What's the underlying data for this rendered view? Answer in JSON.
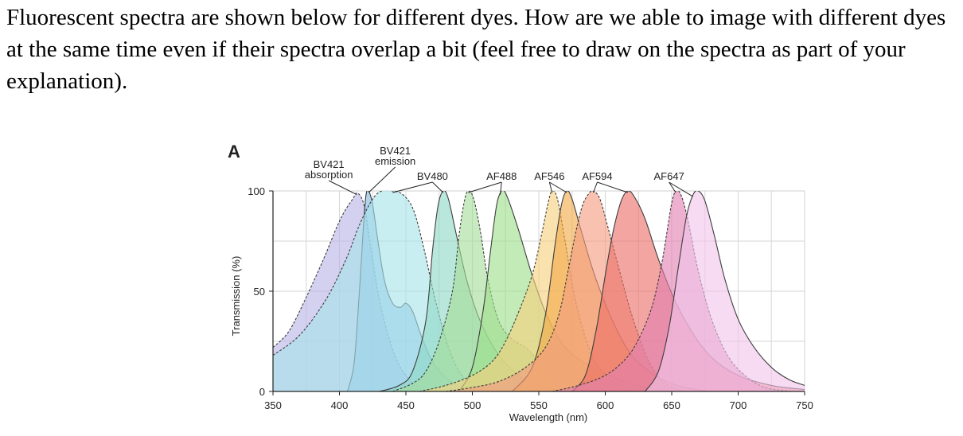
{
  "question": {
    "text": "Fluorescent spectra are shown below for different dyes. How are we able to image with different dyes at the same time even if their spectra overlap a bit (feel free to draw on the spectra as part of your explanation)."
  },
  "chart_data": {
    "type": "area",
    "panel_label": "A",
    "title": "",
    "xlabel": "Wavelength (nm)",
    "ylabel": "Transmission (%)",
    "xlim": [
      350,
      750
    ],
    "ylim": [
      0,
      100
    ],
    "xticks": [
      350,
      400,
      450,
      500,
      550,
      600,
      650,
      700,
      750
    ],
    "yticks": [
      0,
      50,
      100
    ],
    "grid": true,
    "legend": "inline labels above peaks",
    "series": [
      {
        "key": "bv421_abs",
        "label": "BV421 absorption",
        "kind": "absorption",
        "color": "#b9b3e6",
        "points": [
          [
            350,
            22
          ],
          [
            362,
            30
          ],
          [
            375,
            47
          ],
          [
            388,
            66
          ],
          [
            398,
            82
          ],
          [
            404,
            90
          ],
          [
            410,
            96
          ],
          [
            413,
            99
          ],
          [
            417,
            96
          ],
          [
            420,
            88
          ],
          [
            424,
            70
          ],
          [
            430,
            46
          ],
          [
            438,
            25
          ],
          [
            446,
            12
          ],
          [
            456,
            4
          ],
          [
            470,
            0
          ]
        ]
      },
      {
        "key": "bv421_em",
        "label": "BV421 emission",
        "kind": "emission",
        "color": "#7fb7e3",
        "points": [
          [
            406,
            0
          ],
          [
            411,
            14
          ],
          [
            415,
            50
          ],
          [
            418,
            82
          ],
          [
            420,
            98
          ],
          [
            422,
            100
          ],
          [
            425,
            93
          ],
          [
            429,
            75
          ],
          [
            434,
            55
          ],
          [
            440,
            44
          ],
          [
            446,
            42
          ],
          [
            450,
            44
          ],
          [
            455,
            40
          ],
          [
            462,
            27
          ],
          [
            470,
            15
          ],
          [
            480,
            7
          ],
          [
            492,
            2
          ],
          [
            505,
            0
          ]
        ]
      },
      {
        "key": "bv480_abs",
        "label": "",
        "kind": "absorption",
        "color": "#a8e3ea",
        "points": [
          [
            350,
            18
          ],
          [
            370,
            28
          ],
          [
            390,
            46
          ],
          [
            405,
            66
          ],
          [
            415,
            83
          ],
          [
            425,
            96
          ],
          [
            432,
            100
          ],
          [
            440,
            100
          ],
          [
            448,
            98
          ],
          [
            456,
            90
          ],
          [
            464,
            70
          ],
          [
            472,
            46
          ],
          [
            482,
            22
          ],
          [
            492,
            8
          ],
          [
            504,
            2
          ],
          [
            515,
            0
          ]
        ]
      },
      {
        "key": "bv480_em",
        "label": "BV480",
        "kind": "emission",
        "color": "#8fd9c5",
        "points": [
          [
            430,
            0
          ],
          [
            445,
            3
          ],
          [
            455,
            10
          ],
          [
            465,
            35
          ],
          [
            470,
            70
          ],
          [
            474,
            92
          ],
          [
            478,
            100
          ],
          [
            482,
            96
          ],
          [
            488,
            78
          ],
          [
            496,
            55
          ],
          [
            506,
            35
          ],
          [
            520,
            18
          ],
          [
            535,
            8
          ],
          [
            550,
            3
          ],
          [
            570,
            0
          ]
        ]
      },
      {
        "key": "af488_abs",
        "label": "",
        "kind": "absorption",
        "color": "#a4dd9a",
        "points": [
          [
            440,
            0
          ],
          [
            455,
            4
          ],
          [
            465,
            10
          ],
          [
            475,
            25
          ],
          [
            485,
            50
          ],
          [
            490,
            78
          ],
          [
            494,
            95
          ],
          [
            497,
            100
          ],
          [
            501,
            96
          ],
          [
            506,
            80
          ],
          [
            512,
            55
          ],
          [
            520,
            35
          ],
          [
            530,
            26
          ],
          [
            540,
            22
          ],
          [
            550,
            15
          ],
          [
            560,
            5
          ],
          [
            570,
            0
          ]
        ]
      },
      {
        "key": "af488_em",
        "label": "AF488",
        "kind": "emission",
        "color": "#9ddf8b",
        "points": [
          [
            490,
            0
          ],
          [
            500,
            12
          ],
          [
            508,
            40
          ],
          [
            514,
            72
          ],
          [
            518,
            92
          ],
          [
            521,
            99
          ],
          [
            524,
            100
          ],
          [
            528,
            94
          ],
          [
            535,
            80
          ],
          [
            545,
            58
          ],
          [
            556,
            38
          ],
          [
            570,
            22
          ],
          [
            590,
            12
          ],
          [
            615,
            5
          ],
          [
            640,
            1
          ],
          [
            660,
            0
          ]
        ]
      },
      {
        "key": "af546_abs",
        "label": "",
        "kind": "absorption",
        "color": "#f7d07e",
        "points": [
          [
            460,
            0
          ],
          [
            480,
            3
          ],
          [
            500,
            8
          ],
          [
            515,
            15
          ],
          [
            525,
            25
          ],
          [
            535,
            40
          ],
          [
            545,
            58
          ],
          [
            552,
            78
          ],
          [
            557,
            94
          ],
          [
            560,
            100
          ],
          [
            564,
            96
          ],
          [
            570,
            74
          ],
          [
            578,
            44
          ],
          [
            590,
            18
          ],
          [
            605,
            5
          ],
          [
            620,
            0
          ]
        ]
      },
      {
        "key": "af546_em",
        "label": "AF546",
        "kind": "emission",
        "color": "#f2aa48",
        "points": [
          [
            530,
            0
          ],
          [
            545,
            12
          ],
          [
            555,
            38
          ],
          [
            562,
            72
          ],
          [
            567,
            93
          ],
          [
            571,
            100
          ],
          [
            575,
            96
          ],
          [
            582,
            80
          ],
          [
            592,
            58
          ],
          [
            605,
            36
          ],
          [
            620,
            18
          ],
          [
            640,
            7
          ],
          [
            660,
            2
          ],
          [
            680,
            0
          ]
        ]
      },
      {
        "key": "af594_abs",
        "label": "",
        "kind": "absorption",
        "color": "#f39b80",
        "points": [
          [
            480,
            0
          ],
          [
            500,
            2
          ],
          [
            520,
            5
          ],
          [
            540,
            12
          ],
          [
            555,
            22
          ],
          [
            565,
            38
          ],
          [
            572,
            60
          ],
          [
            578,
            80
          ],
          [
            583,
            93
          ],
          [
            588,
            99
          ],
          [
            591,
            100
          ],
          [
            596,
            96
          ],
          [
            602,
            82
          ],
          [
            610,
            62
          ],
          [
            620,
            38
          ],
          [
            632,
            16
          ],
          [
            645,
            4
          ],
          [
            660,
            0
          ]
        ]
      },
      {
        "key": "af594_em",
        "label": "AF594",
        "kind": "emission",
        "color": "#ec6f67",
        "points": [
          [
            575,
            0
          ],
          [
            585,
            8
          ],
          [
            593,
            30
          ],
          [
            600,
            58
          ],
          [
            606,
            80
          ],
          [
            612,
            95
          ],
          [
            617,
            100
          ],
          [
            622,
            97
          ],
          [
            630,
            86
          ],
          [
            640,
            66
          ],
          [
            652,
            46
          ],
          [
            665,
            30
          ],
          [
            680,
            17
          ],
          [
            700,
            8
          ],
          [
            725,
            3
          ],
          [
            750,
            1
          ]
        ]
      },
      {
        "key": "af647_abs",
        "label": "",
        "kind": "absorption",
        "color": "#e27fb0",
        "points": [
          [
            560,
            0
          ],
          [
            580,
            3
          ],
          [
            600,
            8
          ],
          [
            615,
            16
          ],
          [
            625,
            26
          ],
          [
            635,
            42
          ],
          [
            642,
            62
          ],
          [
            647,
            82
          ],
          [
            650,
            94
          ],
          [
            653,
            100
          ],
          [
            657,
            98
          ],
          [
            662,
            86
          ],
          [
            670,
            60
          ],
          [
            680,
            36
          ],
          [
            692,
            18
          ],
          [
            705,
            8
          ],
          [
            720,
            2
          ],
          [
            740,
            0
          ]
        ]
      },
      {
        "key": "af647_em",
        "label": "AF647",
        "kind": "emission",
        "color": "#f0c5ec",
        "points": [
          [
            630,
            0
          ],
          [
            640,
            10
          ],
          [
            648,
            32
          ],
          [
            655,
            62
          ],
          [
            661,
            87
          ],
          [
            666,
            98
          ],
          [
            670,
            100
          ],
          [
            675,
            95
          ],
          [
            682,
            78
          ],
          [
            690,
            56
          ],
          [
            700,
            36
          ],
          [
            712,
            22
          ],
          [
            725,
            12
          ],
          [
            738,
            6
          ],
          [
            750,
            3
          ]
        ]
      }
    ]
  }
}
